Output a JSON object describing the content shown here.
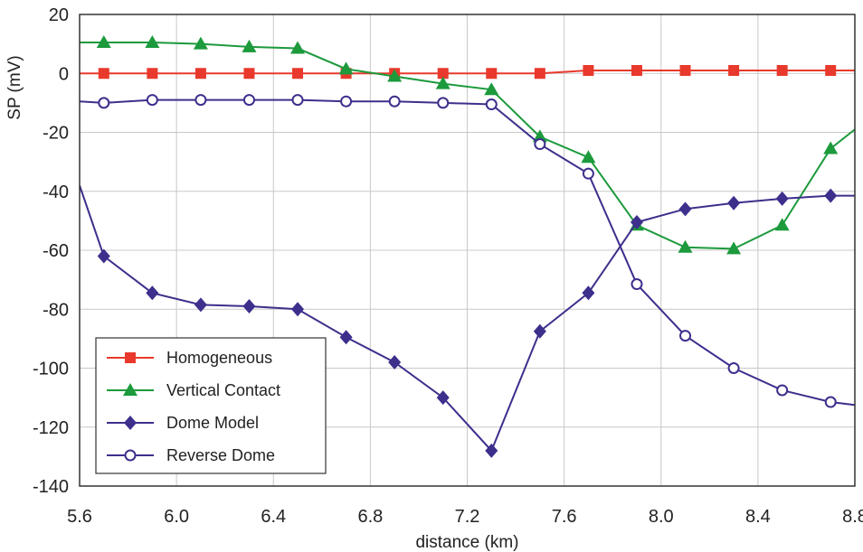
{
  "chart_data": {
    "type": "line",
    "title": "",
    "xlabel": "distance (km)",
    "ylabel": "SP (mV)",
    "xlim": [
      5.6,
      8.8
    ],
    "ylim": [
      -140,
      20
    ],
    "xticks": [
      5.6,
      6.0,
      6.4,
      6.8,
      7.2,
      7.6,
      8.0,
      8.4,
      8.8
    ],
    "xtick_labels": [
      "5.6",
      "6.0",
      "6.4",
      "6.8",
      "7.2",
      "7.6",
      "8.0",
      "8.4",
      "8.8"
    ],
    "yticks": [
      20,
      0,
      -20,
      -40,
      -60,
      -80,
      -100,
      -120,
      -140
    ],
    "ytick_labels": [
      "20",
      "0",
      "-20",
      "-40",
      "-60",
      "-80",
      "-100",
      "-120",
      "-140"
    ],
    "grid": true,
    "legend_position": "bottom-left",
    "series": [
      {
        "name": "Homogeneous",
        "color": "#e8392c",
        "marker": "square",
        "x": [
          5.6,
          5.7,
          5.9,
          6.1,
          6.3,
          6.5,
          6.7,
          6.9,
          7.1,
          7.3,
          7.5,
          7.7,
          7.9,
          8.1,
          8.3,
          8.5,
          8.7,
          8.8
        ],
        "y": [
          0,
          0,
          0,
          0,
          0,
          0,
          0,
          0,
          0,
          0,
          0,
          1,
          1,
          1,
          1,
          1,
          1,
          1
        ],
        "markers_at": [
          5.7,
          5.9,
          6.1,
          6.3,
          6.5,
          6.7,
          6.9,
          7.1,
          7.3,
          7.5,
          7.7,
          7.9,
          8.1,
          8.3,
          8.5,
          8.7
        ]
      },
      {
        "name": "Vertical Contact",
        "color": "#1c9a3c",
        "marker": "triangle",
        "x": [
          5.6,
          5.7,
          5.9,
          6.1,
          6.3,
          6.5,
          6.7,
          6.9,
          7.1,
          7.3,
          7.5,
          7.7,
          7.9,
          8.1,
          8.3,
          8.5,
          8.7,
          8.8
        ],
        "y": [
          10.5,
          10.5,
          10.5,
          10,
          9,
          8.5,
          1.5,
          -1,
          -3.5,
          -5.5,
          -21.5,
          -28.5,
          -51.5,
          -59,
          -59.5,
          -51.5,
          -25.5,
          -19
        ],
        "markers_at": [
          5.7,
          5.9,
          6.1,
          6.3,
          6.5,
          6.7,
          6.9,
          7.1,
          7.3,
          7.5,
          7.7,
          7.9,
          8.1,
          8.3,
          8.5,
          8.7
        ]
      },
      {
        "name": "Dome Model",
        "color": "#3d2f8c",
        "marker": "diamond",
        "x": [
          5.6,
          5.7,
          5.9,
          6.1,
          6.3,
          6.5,
          6.7,
          6.9,
          7.1,
          7.3,
          7.5,
          7.7,
          7.9,
          8.1,
          8.3,
          8.5,
          8.7,
          8.8
        ],
        "y": [
          -38,
          -62,
          -74.5,
          -78.5,
          -79,
          -80,
          -89.5,
          -98,
          -110,
          -128,
          -87.5,
          -74.5,
          -50.5,
          -46,
          -44,
          -42.5,
          -41.5,
          -41.5
        ],
        "markers_at": [
          5.7,
          5.9,
          6.1,
          6.3,
          6.5,
          6.7,
          6.9,
          7.1,
          7.3,
          7.5,
          7.7,
          7.9,
          8.1,
          8.3,
          8.5,
          8.7
        ]
      },
      {
        "name": "Reverse Dome",
        "color": "#3d2f8c",
        "marker": "circle-open",
        "x": [
          5.6,
          5.7,
          5.9,
          6.1,
          6.3,
          6.5,
          6.7,
          6.9,
          7.1,
          7.3,
          7.5,
          7.7,
          7.9,
          8.1,
          8.3,
          8.5,
          8.7,
          8.8
        ],
        "y": [
          -9.5,
          -10,
          -9,
          -9,
          -9,
          -9,
          -9.5,
          -9.5,
          -10,
          -10.5,
          -24,
          -34,
          -71.5,
          -89,
          -100,
          -107.5,
          -111.5,
          -112.5
        ],
        "markers_at": [
          5.7,
          5.9,
          6.1,
          6.3,
          6.5,
          6.7,
          6.9,
          7.1,
          7.3,
          7.5,
          7.7,
          7.9,
          8.1,
          8.3,
          8.5,
          8.7
        ]
      }
    ]
  }
}
